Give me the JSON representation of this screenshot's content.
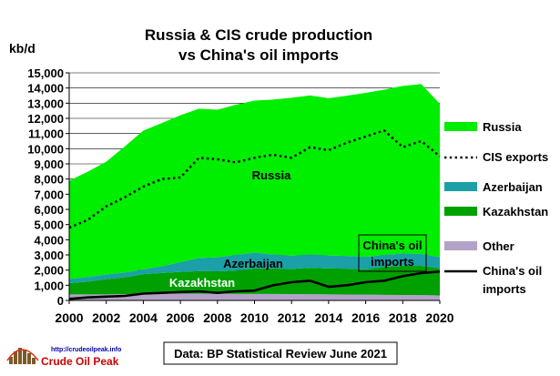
{
  "chart_data": {
    "type": "area",
    "title_lines": [
      "Russia & CIS crude production",
      "vs China's oil imports"
    ],
    "ylabel": "kb/d",
    "xlabel": "",
    "x": [
      2000,
      2001,
      2002,
      2003,
      2004,
      2005,
      2006,
      2007,
      2008,
      2009,
      2010,
      2011,
      2012,
      2013,
      2014,
      2015,
      2016,
      2017,
      2018,
      2019,
      2020
    ],
    "x_ticks": [
      "2000",
      "2002",
      "2004",
      "2006",
      "2008",
      "2010",
      "2012",
      "2014",
      "2016",
      "2018",
      "2020"
    ],
    "ylim": [
      0,
      15000
    ],
    "y_ticks": [
      "0",
      "1,000",
      "2,000",
      "3,000",
      "4,000",
      "5,000",
      "6,000",
      "7,000",
      "8,000",
      "9,000",
      "10,000",
      "11,000",
      "12,000",
      "13,000",
      "14,000",
      "15,000"
    ],
    "grid": true,
    "stacked_series": [
      {
        "name": "Other",
        "color": "#b3a2c7",
        "values": [
          400,
          400,
          400,
          420,
          430,
          450,
          450,
          450,
          440,
          430,
          430,
          430,
          420,
          410,
          400,
          390,
          380,
          370,
          360,
          350,
          330
        ]
      },
      {
        "name": "Kazakhstan",
        "color": "#00a000",
        "values": [
          740,
          840,
          1000,
          1110,
          1300,
          1360,
          1430,
          1480,
          1480,
          1540,
          1680,
          1680,
          1660,
          1740,
          1710,
          1700,
          1660,
          1840,
          1930,
          1930,
          1800
        ]
      },
      {
        "name": "Azerbaijan",
        "color": "#1aa0a6",
        "values": [
          280,
          300,
          310,
          310,
          320,
          450,
          650,
          870,
          920,
          1030,
          1040,
          920,
          870,
          880,
          850,
          840,
          830,
          790,
          800,
          790,
          730
        ]
      },
      {
        "name": "Russia",
        "color": "#00ee00",
        "values": [
          6470,
          6940,
          7430,
          8310,
          9140,
          9430,
          9670,
          9840,
          9730,
          9900,
          10020,
          10210,
          10410,
          10480,
          10370,
          10560,
          10810,
          10890,
          11050,
          11190,
          10100
        ]
      }
    ],
    "lines": [
      {
        "name": "CIS exports",
        "style": "dotted",
        "color": "#000000",
        "values": [
          4800,
          5300,
          6200,
          6800,
          7500,
          8000,
          8100,
          9400,
          9300,
          9100,
          9400,
          9600,
          9400,
          10100,
          9900,
          10400,
          10800,
          11200,
          10100,
          10500,
          9500
        ]
      },
      {
        "name": "China's oil imports",
        "style": "solid",
        "color": "#000000",
        "values": [
          100,
          200,
          250,
          300,
          450,
          500,
          550,
          600,
          500,
          600,
          650,
          1000,
          1200,
          1300,
          900,
          1000,
          1200,
          1300,
          1600,
          1800,
          1900
        ]
      }
    ],
    "legend": {
      "position": "right",
      "entries": [
        {
          "label": "Russia",
          "kind": "swatch",
          "color": "#00ee00"
        },
        {
          "label": "CIS exports",
          "kind": "dotted",
          "color": "#000000"
        },
        {
          "label": "Azerbaijan",
          "kind": "swatch",
          "color": "#1aa0a6"
        },
        {
          "label": "Kazakhstan",
          "kind": "swatch",
          "color": "#00a000"
        },
        {
          "label": "Other",
          "kind": "swatch",
          "color": "#b3a2c7"
        },
        {
          "label_lines": [
            "China's oil",
            "imports"
          ],
          "kind": "line",
          "color": "#000000"
        }
      ]
    },
    "annotations": {
      "russia": "Russia",
      "azerbaijan": "Azerbaijan",
      "kazakhstan": "Kazakhstan",
      "china_lines": [
        "China's oil",
        "imports"
      ]
    },
    "source_note": "Data: BP Statistical Review June 2021"
  },
  "logo": {
    "url_text": "http://crudeoilpeak.info",
    "name": "Crude Oil Peak"
  }
}
